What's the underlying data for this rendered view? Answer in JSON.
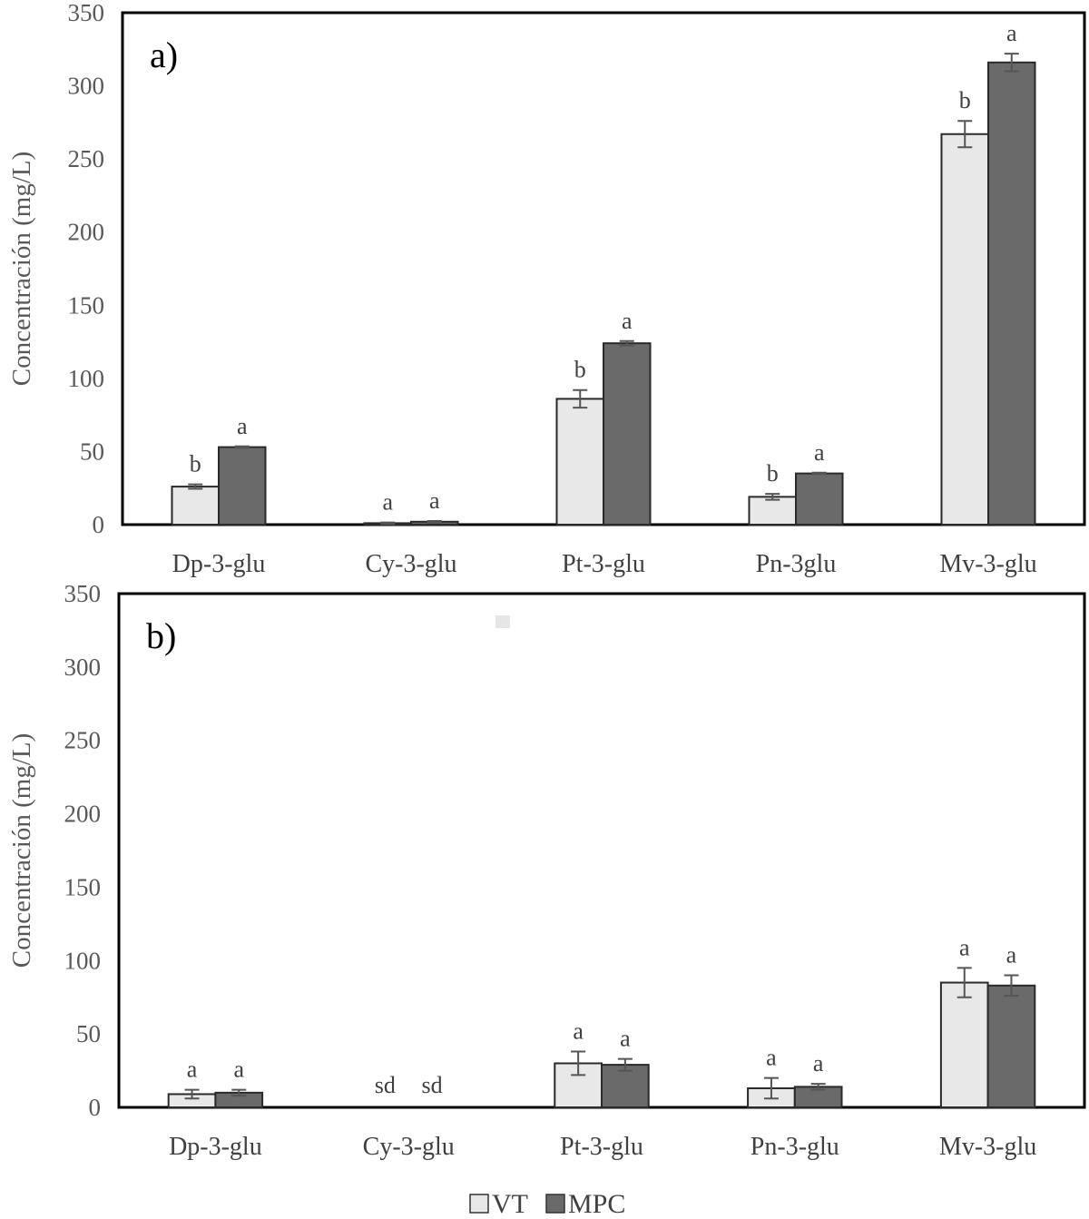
{
  "chart_data": [
    {
      "type": "bar",
      "panel_label": "a)",
      "ylabel": "Concentración (mg/L)",
      "ylim": [
        0,
        350
      ],
      "yticks": [
        0,
        50,
        100,
        150,
        200,
        250,
        300,
        350
      ],
      "categories": [
        "Dp-3-glu",
        "Cy-3-glu",
        "Pt-3-glu",
        "Pn-3glu",
        "Mv-3-glu"
      ],
      "series": [
        {
          "name": "VT",
          "values": [
            26,
            1,
            86,
            19,
            267
          ],
          "errors": [
            1.5,
            0.5,
            6,
            2,
            9
          ],
          "labels": [
            "b",
            "a",
            "b",
            "b",
            "b"
          ]
        },
        {
          "name": "MPC",
          "values": [
            53,
            2,
            124,
            35,
            316
          ],
          "errors": [
            0.5,
            0.5,
            1.5,
            0.5,
            6
          ],
          "labels": [
            "a",
            "a",
            "a",
            "a",
            "a"
          ]
        }
      ],
      "grid": false
    },
    {
      "type": "bar",
      "panel_label": "b)",
      "ylabel": "Concentración (mg/L)",
      "ylim": [
        0,
        350
      ],
      "yticks": [
        0,
        50,
        100,
        150,
        200,
        250,
        300,
        350
      ],
      "categories": [
        "Dp-3-glu",
        "Cy-3-glu",
        "Pt-3-glu",
        "Pn-3-glu",
        "Mv-3-glu"
      ],
      "series": [
        {
          "name": "VT",
          "values": [
            9,
            0,
            30,
            13,
            85
          ],
          "errors": [
            3,
            0,
            8,
            7,
            10
          ],
          "labels": [
            "a",
            "sd",
            "a",
            "a",
            "a"
          ]
        },
        {
          "name": "MPC",
          "values": [
            10,
            0,
            29,
            14,
            83
          ],
          "errors": [
            2,
            0,
            4,
            2,
            7
          ],
          "labels": [
            "a",
            "sd",
            "a",
            "a",
            "a"
          ]
        }
      ],
      "grid": false
    }
  ],
  "legend": {
    "position": "bottom-center",
    "items": [
      {
        "name": "VT",
        "color": "#e8e8e8"
      },
      {
        "name": "MPC",
        "color": "#6a6a6a"
      }
    ]
  }
}
